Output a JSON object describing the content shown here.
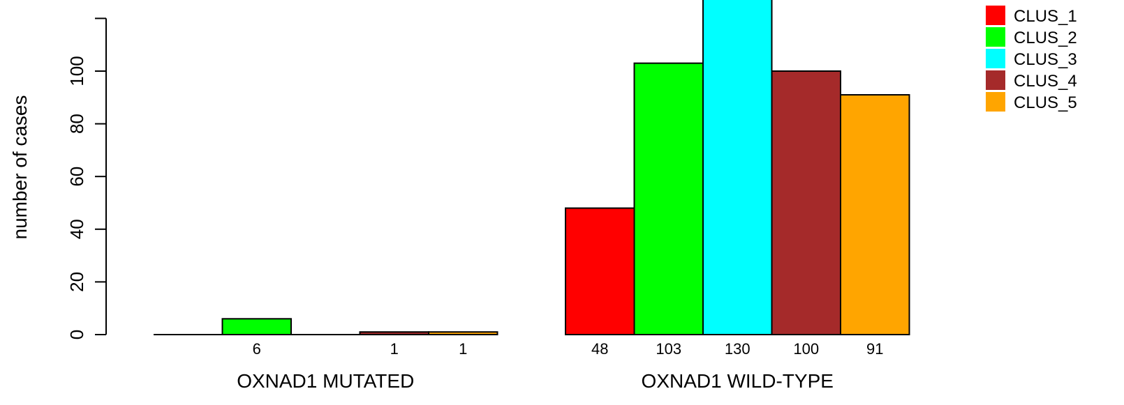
{
  "chart_data": {
    "type": "bar",
    "ylabel": "number of cases",
    "ylim": [
      0,
      120
    ],
    "yticks": [
      0,
      20,
      40,
      60,
      80,
      100
    ],
    "legend_position": "top-right",
    "series": [
      {
        "name": "CLUS_1",
        "color": "#ff0000"
      },
      {
        "name": "CLUS_2",
        "color": "#00ff00"
      },
      {
        "name": "CLUS_3",
        "color": "#00ffff"
      },
      {
        "name": "CLUS_4",
        "color": "#a52a2a"
      },
      {
        "name": "CLUS_5",
        "color": "#ffa500"
      }
    ],
    "groups": [
      {
        "name": "OXNAD1 MUTATED",
        "values": [
          0,
          6,
          0,
          1,
          1
        ],
        "labels": [
          "",
          "6",
          "",
          "1",
          "1"
        ]
      },
      {
        "name": "OXNAD1 WILD-TYPE",
        "values": [
          48,
          103,
          130,
          100,
          91
        ],
        "labels": [
          "48",
          "103",
          "130",
          "100",
          "91"
        ]
      }
    ]
  }
}
